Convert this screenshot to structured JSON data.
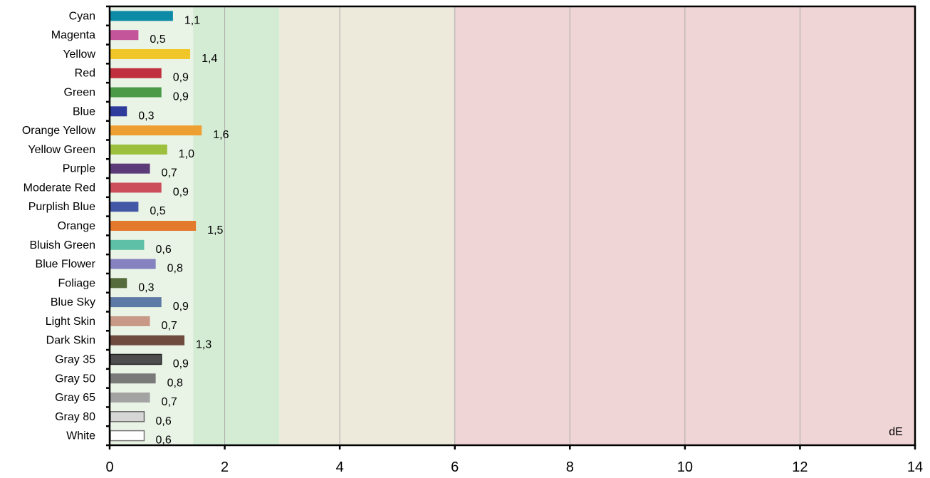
{
  "chart_data": {
    "type": "bar",
    "orientation": "horizontal",
    "unit_label": "dE",
    "xlim": [
      0,
      14
    ],
    "x_ticks": [
      "0",
      "2",
      "4",
      "6",
      "8",
      "10",
      "12",
      "14"
    ],
    "grid": true,
    "background_zones": [
      {
        "from": 0,
        "to": 1.45,
        "color": "#eaf4e6"
      },
      {
        "from": 1.45,
        "to": 2.95,
        "color": "#d5ecd4"
      },
      {
        "from": 2.95,
        "to": 6,
        "color": "#edeadb"
      },
      {
        "from": 6,
        "to": 14,
        "color": "#efd5d6"
      }
    ],
    "categories": [
      "Cyan",
      "Magenta",
      "Yellow",
      "Red",
      "Green",
      "Blue",
      "Orange Yellow",
      "Yellow Green",
      "Purple",
      "Moderate Red",
      "Purplish Blue",
      "Orange",
      "Bluish Green",
      "Blue Flower",
      "Foliage",
      "Blue Sky",
      "Light Skin",
      "Dark Skin",
      "Gray 35",
      "Gray 50",
      "Gray 65",
      "Gray 80",
      "White"
    ],
    "values": [
      1.1,
      0.5,
      1.4,
      0.9,
      0.9,
      0.3,
      1.6,
      1.0,
      0.7,
      0.9,
      0.5,
      1.5,
      0.6,
      0.8,
      0.3,
      0.9,
      0.7,
      1.3,
      0.9,
      0.8,
      0.7,
      0.6,
      0.6
    ],
    "value_labels": [
      "1,1",
      "0,5",
      "1,4",
      "0,9",
      "0,9",
      "0,3",
      "1,6",
      "1,0",
      "0,7",
      "0,9",
      "0,5",
      "1,5",
      "0,6",
      "0,8",
      "0,3",
      "0,9",
      "0,7",
      "1,3",
      "0,9",
      "0,8",
      "0,7",
      "0,6",
      "0,6"
    ],
    "colors": [
      "#0d8aa6",
      "#c4559b",
      "#f0c629",
      "#bf2f3e",
      "#4a9a48",
      "#2f3b9a",
      "#ee9f31",
      "#9cbf3d",
      "#5b3b78",
      "#cc4e5b",
      "#4257a6",
      "#e2792d",
      "#5ec0a6",
      "#8582bf",
      "#556b3b",
      "#5d7aa6",
      "#c79986",
      "#6e4b3e",
      "#4e4e4e",
      "#7a7a7a",
      "#a3a3a3",
      "#d6d6d6",
      "#ffffff"
    ],
    "outlines": [
      "none",
      "none",
      "none",
      "none",
      "none",
      "none",
      "none",
      "none",
      "none",
      "none",
      "none",
      "none",
      "none",
      "none",
      "none",
      "none",
      "none",
      "none",
      "#222222",
      "none",
      "none",
      "#666666",
      "#777777"
    ]
  }
}
